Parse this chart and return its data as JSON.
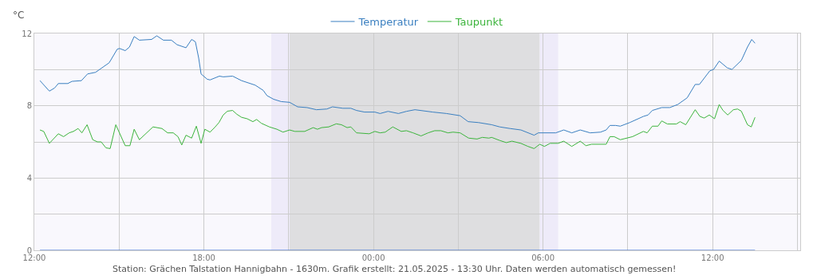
{
  "chart_data": {
    "type": "line",
    "ylabel": "°C",
    "legend": "top",
    "grid": true,
    "line_style": "solid",
    "marker": "none",
    "xlim": [
      "2025-05-20T12:00",
      "2025-05-21T15:06"
    ],
    "xticks": [
      {
        "value": "2025-05-20T12:00",
        "label": "12:00"
      },
      {
        "value": "2025-05-20T15:00",
        "label": null
      },
      {
        "value": "2025-05-20T18:00",
        "label": "18:00"
      },
      {
        "value": "2025-05-20T21:00",
        "label": null
      },
      {
        "value": "2025-05-21T00:00",
        "label": "00:00"
      },
      {
        "value": "2025-05-21T03:00",
        "label": null
      },
      {
        "value": "2025-05-21T06:00",
        "label": "06:00"
      },
      {
        "value": "2025-05-21T09:00",
        "label": null
      },
      {
        "value": "2025-05-21T12:00",
        "label": "12:00"
      },
      {
        "value": "2025-05-21T15:00",
        "label": null
      }
    ],
    "ylim": [
      0,
      12
    ],
    "yticks": [
      0,
      {
        "value": 2,
        "label": null
      },
      4,
      {
        "value": 6,
        "label": null
      },
      8,
      {
        "value": 10,
        "label": null
      },
      12
    ],
    "bands": [
      {
        "axis": "x",
        "from": "2025-05-20T20:23",
        "to": "2025-05-20T21:02",
        "color": "#eeebf9"
      },
      {
        "axis": "x",
        "from": "2025-05-20T21:02",
        "to": "2025-05-21T05:53",
        "color": "#dedee0"
      },
      {
        "axis": "x",
        "from": "2025-05-21T05:53",
        "to": "2025-05-21T06:32",
        "color": "#eeebf9"
      }
    ],
    "series": [
      {
        "name": "Temperatur",
        "color": "#3a7fc0",
        "x": [
          "2025-05-20T12:12",
          "2025-05-20T12:32",
          "2025-05-20T12:43",
          "2025-05-20T12:51",
          "2025-05-20T13:11",
          "2025-05-20T13:20",
          "2025-05-20T13:40",
          "2025-05-20T13:53",
          "2025-05-20T14:10",
          "2025-05-20T14:39",
          "2025-05-20T14:56",
          "2025-05-20T15:01",
          "2025-05-20T15:13",
          "2025-05-20T15:22",
          "2025-05-20T15:32",
          "2025-05-20T15:43",
          "2025-05-20T16:09",
          "2025-05-20T16:20",
          "2025-05-20T16:34",
          "2025-05-20T16:51",
          "2025-05-20T17:03",
          "2025-05-20T17:22",
          "2025-05-20T17:34",
          "2025-05-20T17:42",
          "2025-05-20T17:49",
          "2025-05-20T17:54",
          "2025-05-20T18:07",
          "2025-05-20T18:13",
          "2025-05-20T18:33",
          "2025-05-20T18:41",
          "2025-05-20T19:01",
          "2025-05-20T19:20",
          "2025-05-20T19:49",
          "2025-05-20T20:06",
          "2025-05-20T20:14",
          "2025-05-20T20:28",
          "2025-05-20T20:44",
          "2025-05-20T21:02",
          "2025-05-20T21:19",
          "2025-05-20T21:39",
          "2025-05-20T21:59",
          "2025-05-20T22:21",
          "2025-05-20T22:33",
          "2025-05-20T22:55",
          "2025-05-20T23:12",
          "2025-05-20T23:24",
          "2025-05-20T23:41",
          "2025-05-21T00:03",
          "2025-05-21T00:14",
          "2025-05-21T00:31",
          "2025-05-21T00:53",
          "2025-05-21T01:10",
          "2025-05-21T01:28",
          "2025-05-21T02:06",
          "2025-05-21T02:35",
          "2025-05-21T03:04",
          "2025-05-21T03:21",
          "2025-05-21T03:43",
          "2025-05-21T04:11",
          "2025-05-21T04:28",
          "2025-05-21T04:50",
          "2025-05-21T05:13",
          "2025-05-21T05:41",
          "2025-05-21T05:50",
          "2025-05-21T06:27",
          "2025-05-21T06:44",
          "2025-05-21T07:01",
          "2025-05-21T07:19",
          "2025-05-21T07:40",
          "2025-05-21T08:02",
          "2025-05-21T08:14",
          "2025-05-21T08:22",
          "2025-05-21T08:34",
          "2025-05-21T08:44",
          "2025-05-21T09:04",
          "2025-05-21T09:33",
          "2025-05-21T09:43",
          "2025-05-21T09:52",
          "2025-05-21T10:12",
          "2025-05-21T10:29",
          "2025-05-21T10:46",
          "2025-05-21T11:06",
          "2025-05-21T11:23",
          "2025-05-21T11:32",
          "2025-05-21T11:54",
          "2025-05-21T12:02",
          "2025-05-21T12:14",
          "2025-05-21T12:31",
          "2025-05-21T12:41",
          "2025-05-21T13:01",
          "2025-05-21T13:14",
          "2025-05-21T13:23",
          "2025-05-21T13:30"
        ],
        "values": [
          9.39,
          8.81,
          8.98,
          9.23,
          9.23,
          9.35,
          9.39,
          9.76,
          9.85,
          10.38,
          11.13,
          11.17,
          11.05,
          11.25,
          11.83,
          11.63,
          11.67,
          11.87,
          11.63,
          11.63,
          11.38,
          11.21,
          11.67,
          11.54,
          10.63,
          9.76,
          9.47,
          9.43,
          9.64,
          9.6,
          9.64,
          9.39,
          9.14,
          8.85,
          8.56,
          8.36,
          8.23,
          8.19,
          7.94,
          7.9,
          7.78,
          7.82,
          7.94,
          7.86,
          7.86,
          7.74,
          7.65,
          7.65,
          7.57,
          7.69,
          7.57,
          7.69,
          7.78,
          7.65,
          7.57,
          7.45,
          7.12,
          7.07,
          6.95,
          6.83,
          6.74,
          6.66,
          6.37,
          6.5,
          6.5,
          6.66,
          6.5,
          6.66,
          6.5,
          6.54,
          6.66,
          6.91,
          6.91,
          6.87,
          7.07,
          7.41,
          7.49,
          7.74,
          7.9,
          7.9,
          8.07,
          8.44,
          9.18,
          9.18,
          9.93,
          10.01,
          10.47,
          10.1,
          10.01,
          10.51,
          11.25,
          11.67,
          11.46
        ]
      },
      {
        "name": "Taupunkt",
        "color": "#3cb43c",
        "x": [
          "2025-05-20T12:12",
          "2025-05-20T12:20",
          "2025-05-20T12:32",
          "2025-05-20T12:51",
          "2025-05-20T13:02",
          "2025-05-20T13:14",
          "2025-05-20T13:23",
          "2025-05-20T13:33",
          "2025-05-20T13:41",
          "2025-05-20T13:52",
          "2025-05-20T14:04",
          "2025-05-20T14:14",
          "2025-05-20T14:22",
          "2025-05-20T14:32",
          "2025-05-20T14:41",
          "2025-05-20T14:53",
          "2025-05-20T15:13",
          "2025-05-20T15:23",
          "2025-05-20T15:32",
          "2025-05-20T15:43",
          "2025-05-20T16:12",
          "2025-05-20T16:31",
          "2025-05-20T16:43",
          "2025-05-20T16:55",
          "2025-05-20T17:05",
          "2025-05-20T17:13",
          "2025-05-20T17:22",
          "2025-05-20T17:34",
          "2025-05-20T17:44",
          "2025-05-20T17:54",
          "2025-05-20T18:02",
          "2025-05-20T18:13",
          "2025-05-20T18:24",
          "2025-05-20T18:32",
          "2025-05-20T18:41",
          "2025-05-20T18:50",
          "2025-05-20T19:01",
          "2025-05-20T19:10",
          "2025-05-20T19:20",
          "2025-05-20T19:32",
          "2025-05-20T19:44",
          "2025-05-20T19:52",
          "2025-05-20T20:02",
          "2025-05-20T20:19",
          "2025-05-20T20:35",
          "2025-05-20T20:48",
          "2025-05-20T21:02",
          "2025-05-20T21:13",
          "2025-05-20T21:34",
          "2025-05-20T21:52",
          "2025-05-20T22:01",
          "2025-05-20T22:10",
          "2025-05-20T22:25",
          "2025-05-20T22:41",
          "2025-05-20T22:52",
          "2025-05-20T23:04",
          "2025-05-20T23:12",
          "2025-05-20T23:24",
          "2025-05-20T23:51",
          "2025-05-21T00:03",
          "2025-05-21T00:14",
          "2025-05-21T00:25",
          "2025-05-21T00:41",
          "2025-05-21T00:59",
          "2025-05-21T01:10",
          "2025-05-21T01:24",
          "2025-05-21T01:41",
          "2025-05-21T01:56",
          "2025-05-21T02:10",
          "2025-05-21T02:23",
          "2025-05-21T02:38",
          "2025-05-21T02:49",
          "2025-05-21T03:04",
          "2025-05-21T03:22",
          "2025-05-21T03:40",
          "2025-05-21T03:51",
          "2025-05-21T04:05",
          "2025-05-21T04:11",
          "2025-05-21T04:28",
          "2025-05-21T04:42",
          "2025-05-21T04:54",
          "2025-05-21T05:13",
          "2025-05-21T05:28",
          "2025-05-21T05:41",
          "2025-05-21T05:53",
          "2025-05-21T06:03",
          "2025-05-21T06:15",
          "2025-05-21T06:32",
          "2025-05-21T06:44",
          "2025-05-21T07:01",
          "2025-05-21T07:19",
          "2025-05-21T07:31",
          "2025-05-21T07:43",
          "2025-05-21T08:14",
          "2025-05-21T08:22",
          "2025-05-21T08:31",
          "2025-05-21T08:44",
          "2025-05-21T09:10",
          "2025-05-21T09:33",
          "2025-05-21T09:41",
          "2025-05-21T09:52",
          "2025-05-21T10:04",
          "2025-05-21T10:12",
          "2025-05-21T10:24",
          "2025-05-21T10:43",
          "2025-05-21T10:51",
          "2025-05-21T11:03",
          "2025-05-21T11:23",
          "2025-05-21T11:33",
          "2025-05-21T11:42",
          "2025-05-21T11:53",
          "2025-05-21T12:04",
          "2025-05-21T12:14",
          "2025-05-21T12:22",
          "2025-05-21T12:32",
          "2025-05-21T12:44",
          "2025-05-21T12:53",
          "2025-05-21T13:01",
          "2025-05-21T13:14",
          "2025-05-21T13:22",
          "2025-05-21T13:30"
        ],
        "values": [
          6.66,
          6.58,
          5.92,
          6.45,
          6.29,
          6.5,
          6.58,
          6.74,
          6.5,
          6.95,
          6.12,
          6.0,
          6.0,
          5.67,
          5.63,
          6.95,
          5.79,
          5.79,
          6.7,
          6.12,
          6.83,
          6.74,
          6.5,
          6.5,
          6.29,
          5.83,
          6.37,
          6.21,
          6.87,
          5.92,
          6.7,
          6.54,
          6.83,
          7.07,
          7.49,
          7.7,
          7.74,
          7.53,
          7.36,
          7.28,
          7.12,
          7.24,
          7.03,
          6.83,
          6.7,
          6.54,
          6.66,
          6.58,
          6.58,
          6.79,
          6.7,
          6.79,
          6.83,
          7.0,
          6.95,
          6.79,
          6.83,
          6.5,
          6.45,
          6.58,
          6.5,
          6.54,
          6.83,
          6.58,
          6.62,
          6.5,
          6.33,
          6.5,
          6.62,
          6.62,
          6.5,
          6.54,
          6.5,
          6.21,
          6.16,
          6.25,
          6.21,
          6.25,
          6.08,
          5.96,
          6.04,
          5.92,
          5.75,
          5.63,
          5.87,
          5.75,
          5.92,
          5.92,
          6.04,
          5.75,
          6.04,
          5.79,
          5.87,
          5.87,
          6.29,
          6.29,
          6.12,
          6.29,
          6.58,
          6.5,
          6.87,
          6.87,
          7.16,
          6.99,
          6.99,
          7.12,
          6.95,
          7.78,
          7.41,
          7.32,
          7.49,
          7.28,
          8.07,
          7.74,
          7.49,
          7.78,
          7.82,
          7.7,
          6.95,
          6.83,
          7.36
        ]
      },
      {
        "color": "#3a6fd0",
        "x": [
          "2025-05-20T12:12",
          "2025-05-21T13:30"
        ],
        "values": [
          0,
          0
        ]
      }
    ],
    "annotations": [
      "Station: Grächen Talstation Hannigbahn - 1630m. Grafik erstellt: 21.05.2025 - 13:30 Uhr. Daten werden automatisch gemessen!"
    ]
  }
}
